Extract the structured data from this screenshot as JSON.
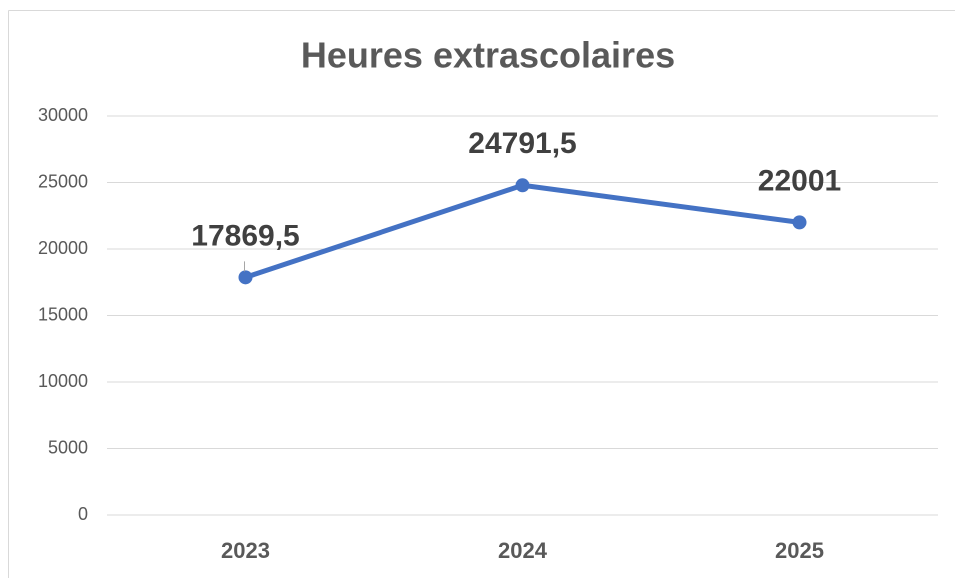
{
  "chart_data": {
    "type": "line",
    "title": "Heures extrascolaires",
    "categories": [
      "2023",
      "2024",
      "2025"
    ],
    "values": [
      17869.5,
      24791.5,
      22001
    ],
    "value_labels": [
      "17869,5",
      "24791,5",
      "22001"
    ],
    "color": "#4472c4",
    "ylim": [
      0,
      30000
    ],
    "yticks": [
      0,
      5000,
      10000,
      15000,
      20000,
      25000,
      30000
    ],
    "grid": true
  }
}
